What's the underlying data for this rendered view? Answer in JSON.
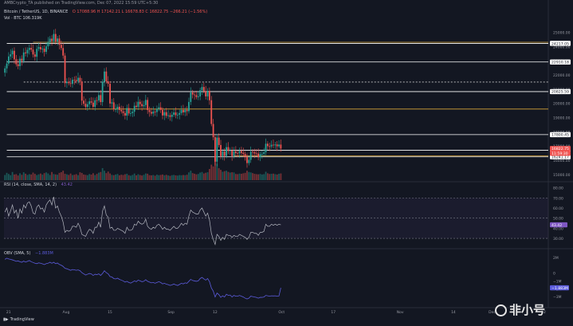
{
  "header": {
    "publisher": "AMBCrypto_TA published on TradingView.com, Dec 07, 2022 15:59 UTC+5:30",
    "symbol_line": "Bitcoin / TetherUS, 1D, BINANCE",
    "ohlc": "O 17088.96  H 17142.21  L 16678.83  C 16822.75  −266.21 (−1.56%)",
    "volume_line": "Vol · BTC  106.319K"
  },
  "panes": {
    "rsi_label": "RSI (14, close, SMA, 14, 2)",
    "rsi_value": "43.42",
    "obv_label": "OBV (SMA, 5)",
    "obv_value": "−1.883M"
  },
  "footer": {
    "brand": "TradingView"
  },
  "watermark": {
    "text": "非小号"
  },
  "colors": {
    "up": "#26a69a",
    "down": "#ef5350",
    "bg": "#131722",
    "rsi": "#7e57c2",
    "obv": "#5b5bdb",
    "level": "#ffffff",
    "gold": "#d6a43a",
    "gold_dark": "#a8873a"
  },
  "chart_data": [
    {
      "type": "candlestick",
      "title": "Bitcoin / TetherUS, 1D, BINANCE",
      "x_ticks": [
        "21",
        "Aug",
        "15",
        "Sep",
        "12",
        "Oct",
        "17",
        "Nov",
        "14",
        "Dec",
        "12",
        "2023",
        "16",
        "Feb"
      ],
      "y_ticks": [
        "25000.00",
        "24000.00",
        "23000.00",
        "22000.00",
        "21000.00",
        "20000.00",
        "19000.00",
        "18000.00",
        "17000.00",
        "16000.00",
        "15000.00"
      ],
      "ylim": [
        14600,
        25700
      ],
      "levels": [
        {
          "label": "24217.05",
          "value": 24217.05,
          "style": "solid-white",
          "x_start": 1
        },
        {
          "label": "22910.18",
          "value": 22910.18,
          "style": "solid-white",
          "x_start": 1
        },
        {
          "label": "20825.59",
          "value": 20825.59,
          "style": "solid-white",
          "x_start": 1
        },
        {
          "label": "17800.45",
          "value": 17800.45,
          "style": "solid-white",
          "x_start": 1
        },
        {
          "label": "16704.89",
          "value": 16704.89,
          "style": "solid-white",
          "x_start": 1
        },
        {
          "label": "16241.17",
          "value": 16241.17,
          "style": "solid-white",
          "x_start": 1
        },
        {
          "value": 24300,
          "style": "gold",
          "x_start": 15
        },
        {
          "value": 21500,
          "style": "dashed-white",
          "x_start": 10
        },
        {
          "value": 19600,
          "style": "gold",
          "x_start": 1
        },
        {
          "value": 16300,
          "style": "gold",
          "x_start": 122
        }
      ],
      "price_tags": [
        {
          "label": "16822.75",
          "value": 16822.75,
          "kind": "last"
        },
        {
          "label": "11:59:30",
          "value": 16822.75,
          "kind": "timer"
        }
      ],
      "closes": [
        22460,
        22800,
        23300,
        23450,
        23700,
        23100,
        22750,
        22620,
        23140,
        22980,
        23580,
        23520,
        23760,
        23900,
        23780,
        23440,
        23280,
        23830,
        23960,
        23800,
        23850,
        23620,
        24010,
        24310,
        24550,
        24380,
        24880,
        24350,
        24560,
        24120,
        23890,
        23360,
        21420,
        21520,
        21420,
        21370,
        21660,
        21640,
        21560,
        21800,
        21540,
        20190,
        19970,
        19750,
        19940,
        20140,
        20050,
        19760,
        20220,
        20210,
        20580,
        20090,
        21520,
        22240,
        21550,
        21380,
        19990,
        20070,
        19590,
        19590,
        19760,
        19540,
        19440,
        19320,
        19140,
        19670,
        19290,
        19310,
        19410,
        19830,
        19750,
        20110,
        19950,
        19800,
        19880,
        20240,
        19530,
        19390,
        19280,
        19420,
        19390,
        19610,
        19720,
        19540,
        19150,
        19380,
        19120,
        19160,
        19050,
        19200,
        19360,
        19170,
        19200,
        19320,
        19540,
        19370,
        19550,
        19450,
        20100,
        20770,
        20620,
        20580,
        20440,
        20490,
        20920,
        21150,
        20870,
        20490,
        20880,
        20220,
        18550,
        17620,
        15900,
        17590,
        17070,
        16290,
        16610,
        16300,
        16920,
        16650,
        16700,
        16290,
        16630,
        16500,
        16490,
        16650,
        16520,
        16440,
        16240,
        15800,
        16030,
        16600,
        16570,
        16480,
        16470,
        16210,
        16440,
        16450,
        16560,
        17160,
        16990,
        16970,
        17090,
        17050,
        17110,
        16980,
        17100,
        16820
      ],
      "volumes": [
        60,
        85,
        72,
        58,
        95,
        66,
        70,
        54,
        80,
        62,
        92,
        75,
        61,
        70,
        66,
        88,
        73,
        59,
        68,
        77,
        64,
        82,
        90,
        78,
        60,
        95,
        71,
        67,
        63,
        85,
        93,
        110,
        74,
        68,
        61,
        77,
        59,
        63,
        70,
        58,
        92,
        84,
        66,
        62,
        58,
        71,
        65,
        81,
        59,
        73,
        87,
        95,
        140,
        110,
        82,
        100,
        78,
        61,
        58,
        66,
        72,
        57,
        63,
        60,
        69,
        74,
        58,
        52,
        61,
        77,
        56,
        69,
        60,
        54,
        62,
        78,
        75,
        58,
        56,
        60,
        52,
        64,
        58,
        61,
        66,
        57,
        62,
        55,
        50,
        58,
        61,
        56,
        53,
        59,
        57,
        60,
        58,
        63,
        90,
        110,
        82,
        75,
        68,
        72,
        88,
        95,
        78,
        86,
        92,
        130,
        180,
        160,
        260,
        190,
        140,
        120,
        98,
        105,
        110,
        96,
        88,
        92,
        90,
        72,
        70,
        76,
        74,
        80,
        85,
        110,
        95,
        90,
        82,
        74,
        70,
        68,
        72,
        66,
        70,
        98,
        80,
        72,
        74,
        76,
        70,
        66,
        74,
        78
      ],
      "volume_label": "Vol · BTC"
    },
    {
      "type": "line",
      "title": "RSI (14, close, SMA, 14, 2)",
      "ylim": [
        23,
        82
      ],
      "y_ticks": [
        "80.00",
        "70.00",
        "60.00",
        "50.00",
        "40.00",
        "30.00"
      ],
      "bands": [
        70,
        50,
        30
      ],
      "series": [
        {
          "name": "RSI",
          "values": [
            56,
            60,
            52,
            57,
            63,
            55,
            58,
            50,
            59,
            55,
            63,
            60,
            65,
            66,
            62,
            55,
            54,
            61,
            63,
            59,
            60,
            56,
            63,
            66,
            68,
            63,
            71,
            60,
            62,
            56,
            52,
            46,
            36,
            38,
            37,
            38,
            42,
            42,
            41,
            45,
            41,
            34,
            33,
            32,
            36,
            39,
            38,
            35,
            41,
            41,
            46,
            41,
            57,
            62,
            53,
            51,
            40,
            41,
            38,
            38,
            40,
            39,
            38,
            37,
            35,
            41,
            38,
            38,
            39,
            44,
            43,
            47,
            45,
            44,
            45,
            49,
            42,
            40,
            39,
            41,
            40,
            43,
            44,
            42,
            39,
            41,
            39,
            39,
            38,
            40,
            42,
            40,
            40,
            42,
            45,
            43,
            45,
            44,
            52,
            58,
            56,
            55,
            54,
            54,
            58,
            60,
            56,
            52,
            55,
            48,
            35,
            29,
            24,
            34,
            32,
            28,
            31,
            29,
            34,
            33,
            33,
            31,
            33,
            32,
            32,
            34,
            33,
            32,
            31,
            29,
            31,
            36,
            36,
            35,
            35,
            33,
            36,
            36,
            37,
            44,
            42,
            42,
            44,
            43,
            44,
            43,
            44,
            43.42
          ]
        },
        {
          "name": "RSI-based MA",
          "values": []
        }
      ]
    },
    {
      "type": "line",
      "title": "OBV (SMA, 5)",
      "ylim": [
        -3.6,
        2.5
      ],
      "y_ticks": [
        "2M",
        "0",
        "−1M",
        "−2M",
        "−3M"
      ],
      "series": [
        {
          "name": "OBV",
          "values": [
            1.75,
            1.9,
            1.8,
            1.75,
            1.68,
            1.6,
            1.5,
            1.55,
            1.45,
            1.38,
            1.52,
            1.4,
            1.5,
            1.6,
            1.45,
            1.35,
            1.25,
            1.2,
            1.3,
            1.25,
            1.18,
            1.08,
            1.2,
            1.25,
            1.38,
            1.25,
            1.38,
            1.2,
            1.28,
            1.1,
            1.0,
            0.85,
            0.6,
            0.55,
            0.45,
            0.35,
            0.45,
            0.42,
            0.35,
            0.4,
            0.3,
            0.05,
            -0.1,
            -0.25,
            -0.15,
            -0.05,
            -0.1,
            -0.3,
            -0.15,
            -0.2,
            -0.1,
            -0.3,
            -0.05,
            0.3,
            0.05,
            -0.1,
            -0.45,
            -0.5,
            -0.7,
            -0.75,
            -0.65,
            -0.8,
            -0.9,
            -1.0,
            -1.15,
            -1.05,
            -1.2,
            -1.28,
            -1.15,
            -1.0,
            -1.1,
            -0.9,
            -1.0,
            -1.1,
            -1.05,
            -0.85,
            -1.05,
            -1.15,
            -1.25,
            -1.2,
            -1.3,
            -1.2,
            -1.1,
            -1.2,
            -1.38,
            -1.3,
            -1.42,
            -1.48,
            -1.58,
            -1.5,
            -1.4,
            -1.5,
            -1.58,
            -1.45,
            -1.3,
            -1.38,
            -1.25,
            -1.3,
            -1.05,
            -0.8,
            -0.95,
            -1.0,
            -1.05,
            -1.0,
            -0.7,
            -0.55,
            -0.75,
            -0.9,
            -0.7,
            -1.1,
            -1.9,
            -2.3,
            -3.05,
            -2.55,
            -2.75,
            -3.1,
            -2.9,
            -3.05,
            -2.7,
            -2.85,
            -2.8,
            -3.05,
            -2.85,
            -2.95,
            -2.95,
            -2.85,
            -2.95,
            -3.05,
            -3.2,
            -3.3,
            -3.2,
            -2.95,
            -3.0,
            -3.05,
            -3.1,
            -3.2,
            -3.1,
            -3.1,
            -3.05,
            -2.85,
            -2.9,
            -2.95,
            -2.9,
            -2.92,
            -2.9,
            -2.95,
            -2.92,
            -1.883
          ]
        }
      ]
    }
  ]
}
